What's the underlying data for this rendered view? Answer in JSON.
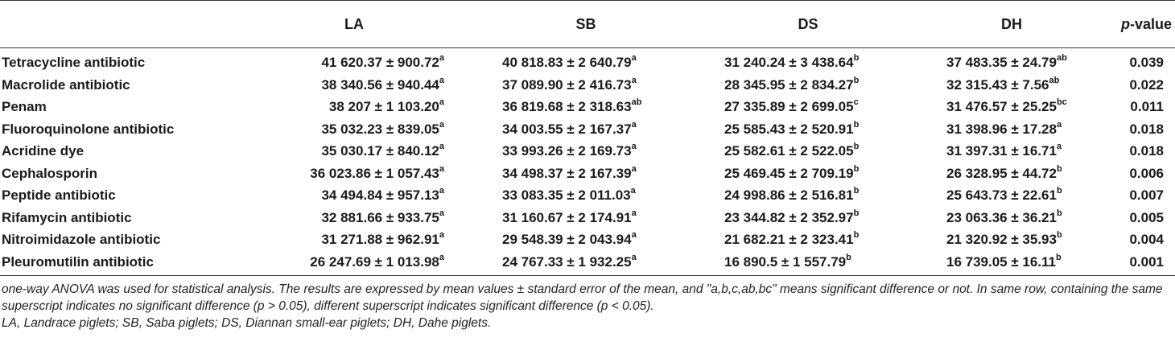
{
  "table": {
    "headers": [
      "",
      "LA",
      "SB",
      "DS",
      "DH"
    ],
    "pvalue_header": {
      "prefix": "p",
      "suffix": "-value"
    },
    "rows": [
      {
        "name": "Tetracycline antibiotic",
        "cells": [
          {
            "v": "41 620.37 ± 900.72",
            "s": "a"
          },
          {
            "v": "40 818.83 ± 2 640.79",
            "s": "a"
          },
          {
            "v": "31 240.24 ± 3 438.64",
            "s": "b"
          },
          {
            "v": "37 483.35 ± 24.79",
            "s": "ab"
          }
        ],
        "p": "0.039"
      },
      {
        "name": "Macrolide antibiotic",
        "cells": [
          {
            "v": "38 340.56 ± 940.44",
            "s": "a"
          },
          {
            "v": "37 089.90 ± 2 416.73",
            "s": "a"
          },
          {
            "v": "28 345.95 ± 2 834.27",
            "s": "b"
          },
          {
            "v": "32 315.43 ± 7.56",
            "s": "ab"
          }
        ],
        "p": "0.022"
      },
      {
        "name": "Penam",
        "cells": [
          {
            "v": "38 207 ± 1 103.20",
            "s": "a"
          },
          {
            "v": "36 819.68 ± 2 318.63",
            "s": "ab"
          },
          {
            "v": "27 335.89 ± 2 699.05",
            "s": "c"
          },
          {
            "v": "31 476.57 ± 25.25",
            "s": "bc"
          }
        ],
        "p": "0.011"
      },
      {
        "name": "Fluoroquinolone antibiotic",
        "cells": [
          {
            "v": "35 032.23 ± 839.05",
            "s": "a"
          },
          {
            "v": "34 003.55 ± 2 167.37",
            "s": "a"
          },
          {
            "v": "25 585.43 ± 2 520.91",
            "s": "b"
          },
          {
            "v": "31 398.96 ± 17.28",
            "s": "a"
          }
        ],
        "p": "0.018"
      },
      {
        "name": "Acridine dye",
        "cells": [
          {
            "v": "35 030.17 ± 840.12",
            "s": "a"
          },
          {
            "v": "33 993.26 ± 2 169.73",
            "s": "a"
          },
          {
            "v": "25 582.61 ± 2 522.05",
            "s": "b"
          },
          {
            "v": "31 397.31 ± 16.71",
            "s": "a"
          }
        ],
        "p": "0.018"
      },
      {
        "name": "Cephalosporin",
        "cells": [
          {
            "v": "36 023.86 ± 1 057.43",
            "s": "a"
          },
          {
            "v": "34 498.37 ± 2 167.39",
            "s": "a"
          },
          {
            "v": "25 469.45 ± 2 709.19",
            "s": "b"
          },
          {
            "v": "26 328.95 ± 44.72",
            "s": "b"
          }
        ],
        "p": "0.006"
      },
      {
        "name": "Peptide antibiotic",
        "cells": [
          {
            "v": "34 494.84 ± 957.13",
            "s": "a"
          },
          {
            "v": "33 083.35 ± 2 011.03",
            "s": "a"
          },
          {
            "v": "24 998.86 ± 2 516.81",
            "s": "b"
          },
          {
            "v": "25 643.73 ± 22.61",
            "s": "b"
          }
        ],
        "p": "0.007"
      },
      {
        "name": "Rifamycin antibiotic",
        "cells": [
          {
            "v": "32 881.66 ± 933.75",
            "s": "a"
          },
          {
            "v": "31 160.67 ± 2 174.91",
            "s": "a"
          },
          {
            "v": "23 344.82 ± 2 352.97",
            "s": "b"
          },
          {
            "v": "23 063.36 ± 36.21",
            "s": "b"
          }
        ],
        "p": "0.005"
      },
      {
        "name": "Nitroimidazole antibiotic",
        "cells": [
          {
            "v": "31 271.88 ± 962.91",
            "s": "a"
          },
          {
            "v": "29 548.39 ± 2 043.94",
            "s": "a"
          },
          {
            "v": "21 682.21 ± 2 323.41",
            "s": "b"
          },
          {
            "v": "21 320.92 ± 35.93",
            "s": "b"
          }
        ],
        "p": "0.004"
      },
      {
        "name": "Pleuromutilin antibiotic",
        "cells": [
          {
            "v": "26 247.69 ± 1 013.98",
            "s": "a"
          },
          {
            "v": "24 767.33 ± 1 932.25",
            "s": "a"
          },
          {
            "v": "16 890.5 ± 1 557.79",
            "s": "b"
          },
          {
            "v": "16 739.05 ± 16.11",
            "s": "b"
          }
        ],
        "p": "0.001"
      }
    ]
  },
  "footnotes": [
    "one-way ANOVA was used for statistical analysis. The results are expressed by mean values ± standard error of the mean, and \"a,b,c,ab,bc\" means significant difference or not. In same row, containing the same superscript indicates no significant difference (p > 0.05), different superscript indicates significant difference (p < 0.05).",
    "LA, Landrace piglets; SB, Saba piglets; DS, Diannan small-ear piglets; DH, Dahe piglets."
  ]
}
